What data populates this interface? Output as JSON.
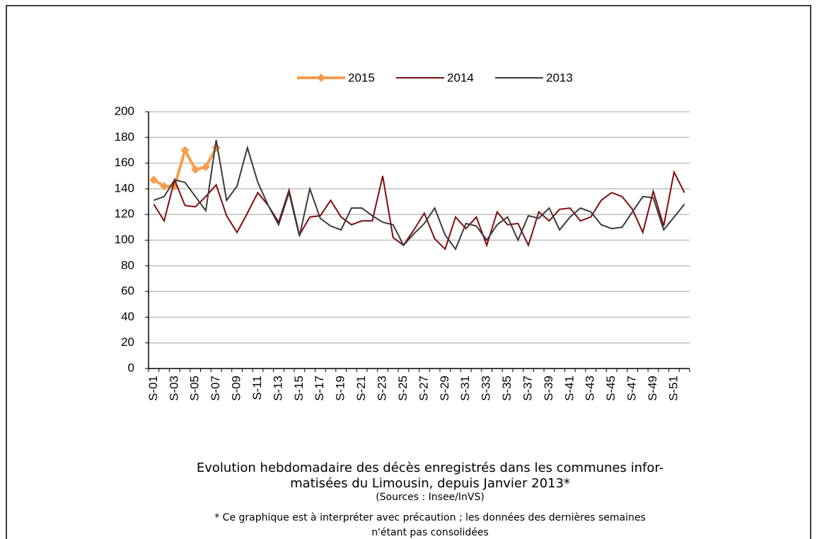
{
  "chart_data": {
    "type": "line",
    "categories": [
      "S-01",
      null,
      "S-03",
      null,
      "S-05",
      null,
      "S-07",
      null,
      "S-09",
      null,
      "S-11",
      null,
      "S-13",
      null,
      "S-15",
      null,
      "S-17",
      null,
      "S-19",
      null,
      "S-21",
      null,
      "S-23",
      null,
      "S-25",
      null,
      "S-27",
      null,
      "S-29",
      null,
      "S-31",
      null,
      "S-33",
      null,
      "S-35",
      null,
      "S-37",
      null,
      "S-39",
      null,
      "S-41",
      null,
      "S-43",
      null,
      "S-45",
      null,
      "S-47",
      null,
      "S-49",
      null,
      "S-51",
      null
    ],
    "series": [
      {
        "name": "2015",
        "color": "#f59d4d",
        "marker": "diamond",
        "values": [
          147,
          142,
          142,
          170,
          155,
          157,
          172,
          null,
          null,
          null,
          null,
          null,
          null,
          null,
          null,
          null,
          null,
          null,
          null,
          null,
          null,
          null,
          null,
          null,
          null,
          null,
          null,
          null,
          null,
          null,
          null,
          null,
          null,
          null,
          null,
          null,
          null,
          null,
          null,
          null,
          null,
          null,
          null,
          null,
          null,
          null,
          null,
          null,
          null,
          null,
          null,
          null
        ]
      },
      {
        "name": "2014",
        "color": "#7f0c0c",
        "values": [
          128,
          115,
          147,
          127,
          126,
          134,
          143,
          119,
          106,
          121,
          137,
          127,
          114,
          139,
          104,
          118,
          119,
          131,
          118,
          112,
          115,
          115,
          150,
          102,
          96,
          108,
          121,
          101,
          93,
          118,
          109,
          118,
          96,
          122,
          112,
          113,
          96,
          122,
          115,
          124,
          125,
          115,
          118,
          131,
          137,
          134,
          124,
          106,
          138,
          111,
          153,
          137
        ]
      },
      {
        "name": "2013",
        "color": "#3a3a3a",
        "values": [
          131,
          134,
          147,
          145,
          134,
          123,
          178,
          131,
          142,
          172,
          145,
          127,
          112,
          137,
          103,
          140,
          117,
          111,
          108,
          125,
          125,
          119,
          114,
          112,
          96,
          105,
          113,
          125,
          104,
          93,
          113,
          111,
          100,
          112,
          118,
          100,
          119,
          117,
          125,
          108,
          118,
          125,
          122,
          112,
          109,
          110,
          122,
          134,
          133,
          108,
          118,
          128
        ]
      }
    ],
    "ylim": [
      0,
      200
    ],
    "yticks": [
      0,
      20,
      40,
      60,
      80,
      100,
      120,
      140,
      160,
      180,
      200
    ],
    "grid": true,
    "legend": "top",
    "caption": [
      "Evolution hebdomadaire des décès enregistrés dans les communes infor-",
      "matisées du Limousin, depuis Janvier  2013*",
      "(Sources : Insee/InVS)",
      "* Ce graphique est à interpréter avec précaution ; les données des dernières semaines",
      "n'étant pas consolidées"
    ]
  }
}
